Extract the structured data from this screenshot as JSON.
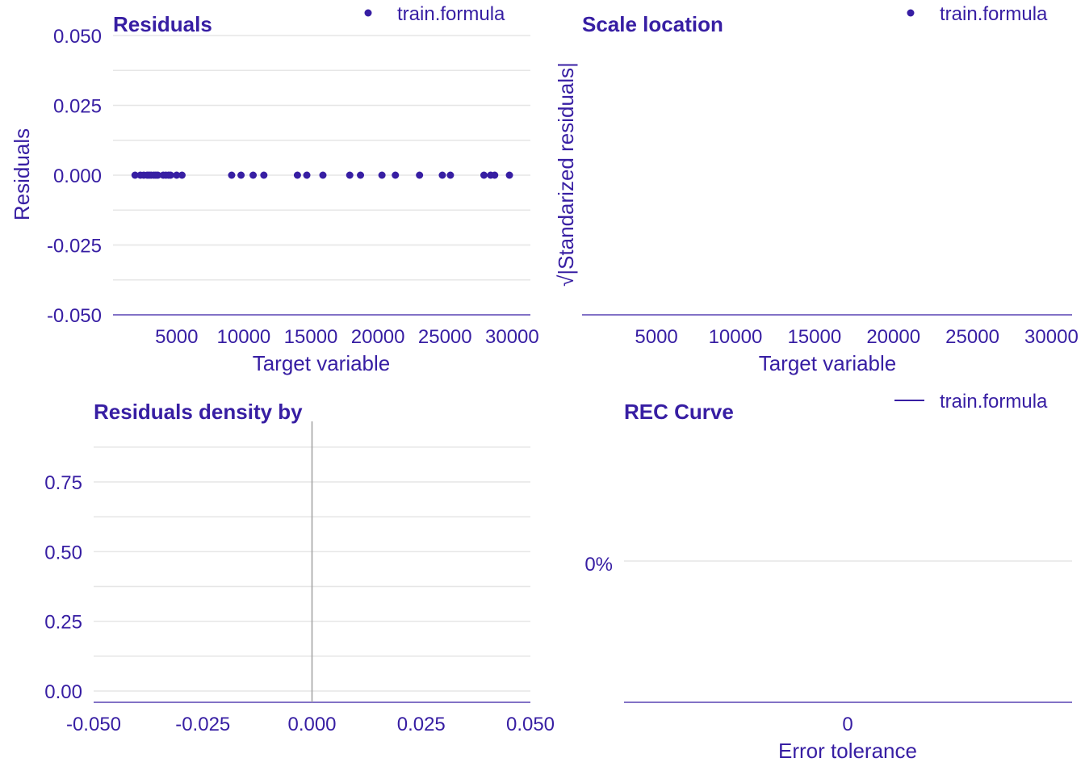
{
  "theme": {
    "ink": "#371ea3",
    "grid": "#e6e6e6",
    "vline": "#a0a0a0"
  },
  "chart_data": [
    {
      "type": "scatter",
      "title": "Residuals",
      "xlabel": "Target variable",
      "ylabel": "Residuals",
      "xlim": [
        500,
        31000
      ],
      "ylim": [
        -0.05,
        0.05
      ],
      "xticks": [
        5000,
        10000,
        15000,
        20000,
        25000,
        30000
      ],
      "xtick_labels": [
        "5000",
        "10000",
        "15000",
        "20000",
        "25000",
        "30000"
      ],
      "yticks": [
        -0.05,
        -0.025,
        0,
        0.025,
        0.05
      ],
      "ytick_labels": [
        "-0.050",
        "-0.025",
        "0.000",
        "0.025",
        "0.050"
      ],
      "legend": {
        "position": "top-right",
        "labels": [
          "train.formula"
        ]
      },
      "series": [
        {
          "name": "train.formula",
          "x": [
            1900,
            2300,
            2550,
            2800,
            2950,
            3100,
            3300,
            3450,
            3600,
            4000,
            4200,
            4400,
            4550,
            5000,
            5400,
            9100,
            9800,
            10700,
            11500,
            14000,
            14700,
            15900,
            17900,
            18700,
            20300,
            21300,
            23100,
            24800,
            25400,
            27900,
            28400,
            28700,
            29800
          ],
          "y": [
            0,
            0,
            0,
            0,
            0,
            0,
            0,
            0,
            0,
            0,
            0,
            0,
            0,
            0,
            0,
            0,
            0,
            0,
            0,
            0,
            0,
            0,
            0,
            0,
            0,
            0,
            0,
            0,
            0,
            0,
            0,
            0,
            0
          ]
        }
      ]
    },
    {
      "type": "scatter",
      "title": "Scale location",
      "xlabel": "Target variable",
      "ylabel": "√|Standarized residuals|",
      "xlim": [
        500,
        31000
      ],
      "xticks": [
        5000,
        10000,
        15000,
        20000,
        25000,
        30000
      ],
      "xtick_labels": [
        "5000",
        "10000",
        "15000",
        "20000",
        "25000",
        "30000"
      ],
      "legend": {
        "position": "top-right",
        "labels": [
          "train.formula"
        ]
      },
      "series": [
        {
          "name": "train.formula",
          "x": [],
          "y": []
        }
      ]
    },
    {
      "type": "area",
      "title": "Residuals density by",
      "xlim": [
        -0.05,
        0.05
      ],
      "ylim": [
        -0.03,
        0.95
      ],
      "xticks": [
        -0.05,
        -0.025,
        0,
        0.025,
        0.05
      ],
      "xtick_labels": [
        "-0.050",
        "-0.025",
        "0.000",
        "0.025",
        "0.050"
      ],
      "yticks": [
        0,
        0.25,
        0.5,
        0.75
      ],
      "ytick_labels": [
        "0.00",
        "0.25",
        "0.50",
        "0.75"
      ],
      "vertical_line_x": 0
    },
    {
      "type": "line",
      "title": "REC Curve",
      "xlabel": "Error tolerance",
      "xticks": [
        0
      ],
      "xtick_labels": [
        "0"
      ],
      "yticks": [
        0
      ],
      "ytick_labels": [
        "0%"
      ],
      "legend": {
        "position": "top-right",
        "labels": [
          "train.formula"
        ]
      },
      "series": [
        {
          "name": "train.formula",
          "x": [],
          "y": []
        }
      ]
    }
  ]
}
